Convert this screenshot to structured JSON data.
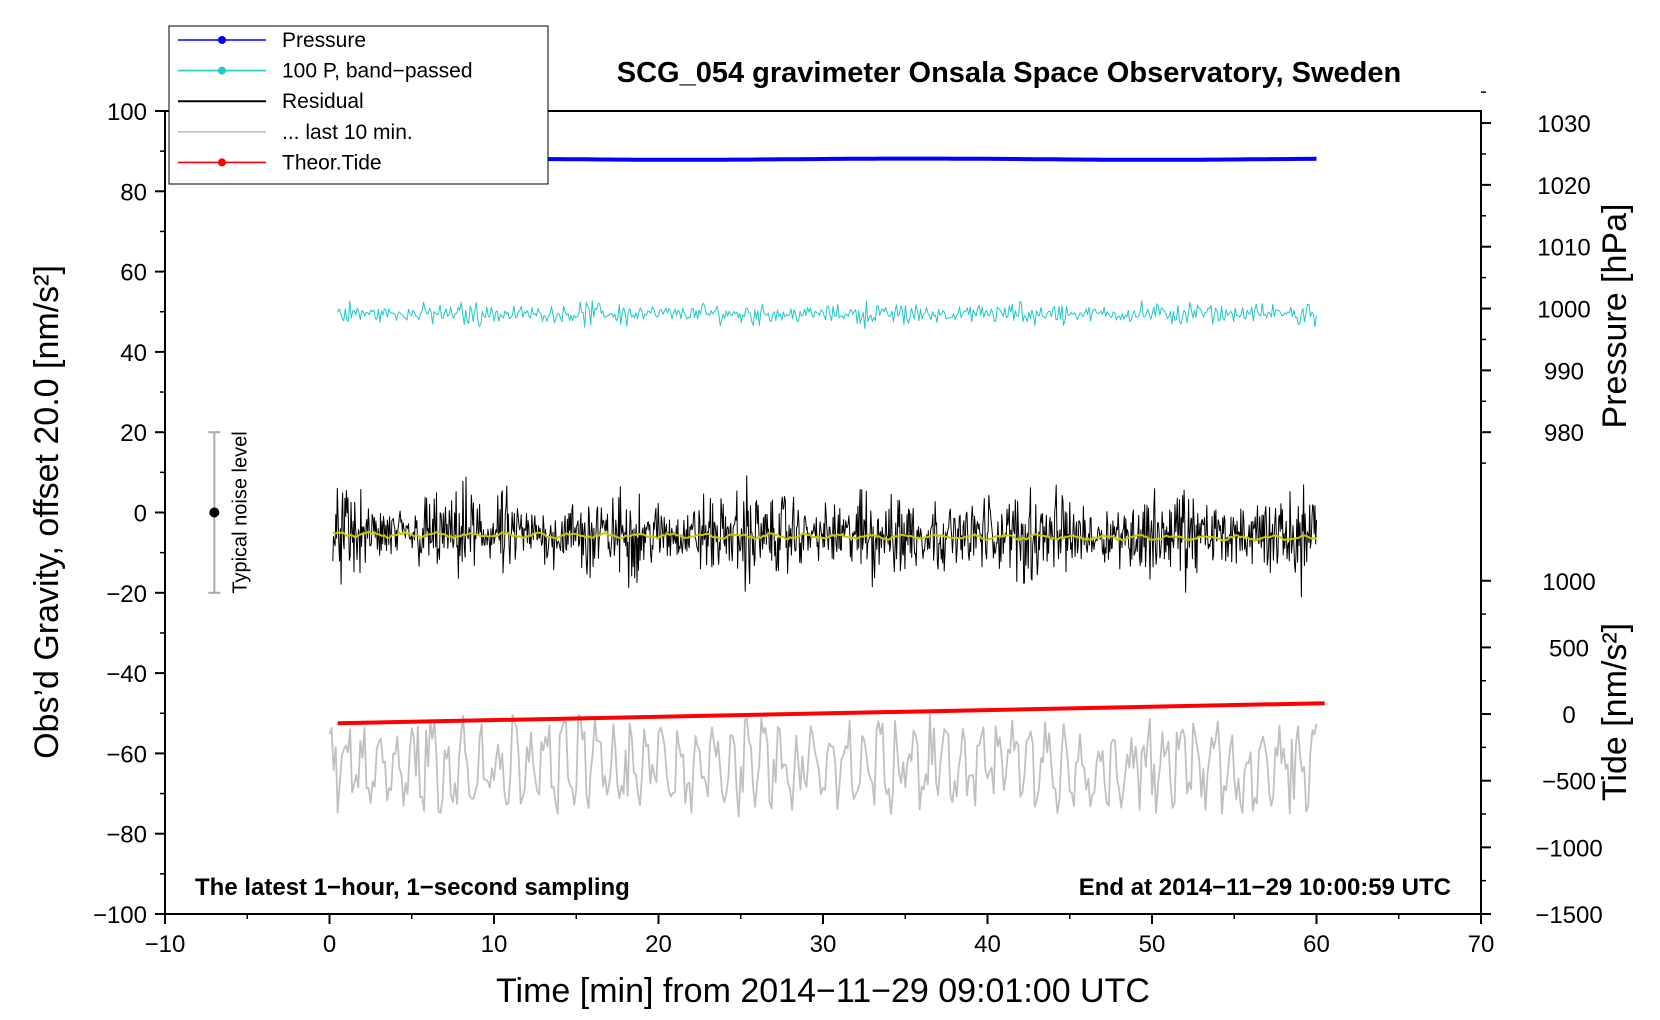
{
  "chart_data": {
    "type": "line",
    "title": "SCG_054 gravimeter Onsala Space Observatory, Sweden",
    "xlabel": "Time [min] from 2014−11−29 09:01:00 UTC",
    "ylabel_left": "Obs’d Gravity, offset 20.0 [nm/s²]",
    "ylabel_right_top": "Pressure [hPa]",
    "ylabel_right_bottom": "Tide [nm/s²]",
    "xlim": [
      -10,
      70
    ],
    "ylim": [
      -100,
      100
    ],
    "x_ticks": [
      -10,
      0,
      10,
      20,
      30,
      40,
      50,
      60,
      70
    ],
    "x_tick_labels": [
      "−10",
      "0",
      "10",
      "20",
      "30",
      "40",
      "50",
      "60",
      "70"
    ],
    "y_ticks": [
      -100,
      -80,
      -60,
      -40,
      -20,
      0,
      20,
      40,
      60,
      80,
      100
    ],
    "y_tick_labels": [
      "−100",
      "−80",
      "−60",
      "−40",
      "−20",
      "0",
      "20",
      "40",
      "60",
      "80",
      "100"
    ],
    "pressure_axis": {
      "ticks": [
        980,
        990,
        1000,
        1010,
        1020,
        1030
      ],
      "tick_labels": [
        "980",
        "990",
        "1000",
        "1010",
        "1020",
        "1030"
      ],
      "gravity_at_980": 20,
      "gravity_at_1030": 97
    },
    "tide_axis": {
      "ticks": [
        -1500,
        -1000,
        -500,
        0,
        500,
        1000
      ],
      "tick_labels": [
        "−1500",
        "−1000",
        "−500",
        "0",
        "500",
        "1000"
      ],
      "gravity_at_minus1500": -100,
      "gravity_at_1000": -17
    },
    "annotations": {
      "bottom_left": "The latest 1−hour, 1−second sampling",
      "bottom_right": "End at 2014−11−29 10:00:59 UTC",
      "noise_label": "Typical noise level",
      "noise_bar": {
        "x": -7,
        "center": 0,
        "low": -20,
        "high": 20
      }
    },
    "legend": {
      "position": "top-left",
      "entries": [
        {
          "label": "Pressure",
          "color": "#0000ff",
          "marker": true
        },
        {
          "label": "100 P, band−passed",
          "color": "#20c8c8",
          "marker": true
        },
        {
          "label": "Residual",
          "color": "#000000",
          "marker": false
        },
        {
          "label": "... last 10 min.",
          "color": "#c0c0c0",
          "marker": false
        },
        {
          "label": "Theor.Tide",
          "color": "#ff0000",
          "marker": true
        }
      ]
    },
    "series": [
      {
        "name": "Pressure",
        "color": "#0000ff",
        "x_range": [
          0,
          60
        ],
        "level": 88.0,
        "noise_amplitude": 0.3,
        "style": "thick"
      },
      {
        "name": "100 P, band−passed",
        "color": "#20c8c8",
        "x_range": [
          0.5,
          60
        ],
        "level": 49.5,
        "noise_amplitude": 3.2,
        "style": "noise"
      },
      {
        "name": "Residual",
        "color": "#000000",
        "x_range": [
          0.2,
          60
        ],
        "level": -5.5,
        "noise_amplitude": 12,
        "style": "noise"
      },
      {
        "name": "Residual smoothed",
        "color": "#c8c800",
        "x_range": [
          0.2,
          60
        ],
        "level": -5.5,
        "noise_amplitude": 0.8,
        "style": "smooth"
      },
      {
        "name": "... last 10 min.",
        "color": "#c0c0c0",
        "x_range": [
          0,
          60
        ],
        "level": -63,
        "noise_amplitude": 11,
        "style": "wave"
      },
      {
        "name": "Theor.Tide",
        "color": "#ff0000",
        "x_start": 0.5,
        "y_start": -52.5,
        "x_end": 60.5,
        "y_end": -47.5,
        "style": "thick"
      }
    ]
  }
}
